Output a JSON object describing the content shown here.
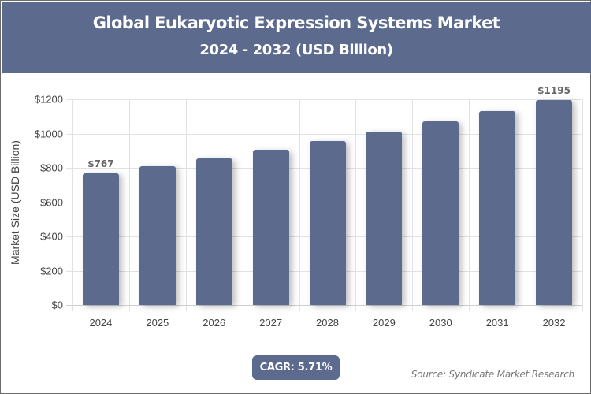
{
  "header": {
    "title": "Global Eukaryotic Expression Systems Market",
    "subtitle": "2024 - 2032 (USD Billion)",
    "background_color": "#5b6a8d"
  },
  "axis": {
    "ylabel": "Market Size (USD Billion)",
    "yticks": [
      "$0",
      "$200",
      "$400",
      "$600",
      "$800",
      "$1000",
      "$1200"
    ],
    "xticks": [
      "2024",
      "2025",
      "2026",
      "2027",
      "2028",
      "2029",
      "2030",
      "2031",
      "2032"
    ]
  },
  "labels": {
    "first": "$767",
    "last": "$1195"
  },
  "footer": {
    "cagr": "CAGR: 5.71%",
    "source": "Source: Syndicate Market Research"
  },
  "chart_data": {
    "type": "bar",
    "title": "Global Eukaryotic Expression Systems Market",
    "subtitle": "2024 - 2032 (USD Billion)",
    "categories": [
      "2024",
      "2025",
      "2026",
      "2027",
      "2028",
      "2029",
      "2030",
      "2031",
      "2032"
    ],
    "values": [
      767,
      811,
      857,
      906,
      958,
      1012,
      1070,
      1131,
      1195
    ],
    "data_labels": {
      "2024": "$767",
      "2032": "$1195"
    },
    "xlabel": "",
    "ylabel": "Market Size (USD Billion)",
    "ylim": [
      0,
      1200
    ],
    "yticks": [
      0,
      200,
      400,
      600,
      800,
      1000,
      1200
    ],
    "grid": true,
    "legend": null,
    "bar_color": "#5b6a8d",
    "annotations": [
      "CAGR: 5.71%",
      "Source: Syndicate Market Research"
    ]
  }
}
